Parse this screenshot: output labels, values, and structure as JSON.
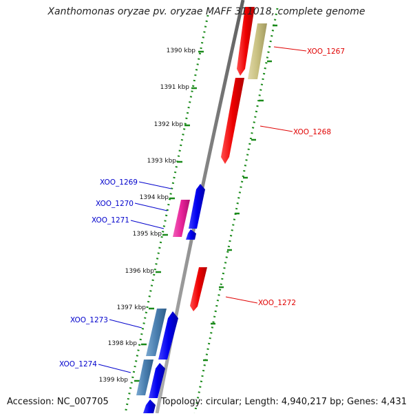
{
  "title": "Xanthomonas oryzae pv. oryzae MAFF 311018, complete genome",
  "footer": {
    "accession": "Accession: NC_007705",
    "summary": "Topology: circular; Length: 4,940,217 bp; Genes: 4,431"
  },
  "ticks": [
    {
      "label": "1390 kbp",
      "kbp": 1390
    },
    {
      "label": "1391 kbp",
      "kbp": 1391
    },
    {
      "label": "1392 kbp",
      "kbp": 1392
    },
    {
      "label": "1393 kbp",
      "kbp": 1393
    },
    {
      "label": "1394 kbp",
      "kbp": 1394
    },
    {
      "label": "1395 kbp",
      "kbp": 1395
    },
    {
      "label": "1396 kbp",
      "kbp": 1396
    },
    {
      "label": "1397 kbp",
      "kbp": 1397
    },
    {
      "label": "1398 kbp",
      "kbp": 1398
    },
    {
      "label": "1399 kbp",
      "kbp": 1399
    }
  ],
  "gene_labels": [
    {
      "label": "XOO_1267",
      "color": "#e00000"
    },
    {
      "label": "XOO_1268",
      "color": "#e00000"
    },
    {
      "label": "XOO_1269",
      "color": "#0000cc"
    },
    {
      "label": "XOO_1270",
      "color": "#0000cc"
    },
    {
      "label": "XOO_1271",
      "color": "#0000cc"
    },
    {
      "label": "XOO_1272",
      "color": "#e00000"
    },
    {
      "label": "XOO_1273",
      "color": "#0000cc"
    },
    {
      "label": "XOO_1274",
      "color": "#0000cc"
    }
  ],
  "colors": {
    "backbone": "#8a8a8a",
    "ring_dots": "#1a8a1a",
    "red_feature": "#ee0000",
    "blue_feature": "#0000ee",
    "khaki_feature": "#c8c080",
    "pink_feature": "#e8239a",
    "steel_feature": "#4a7fb0"
  }
}
